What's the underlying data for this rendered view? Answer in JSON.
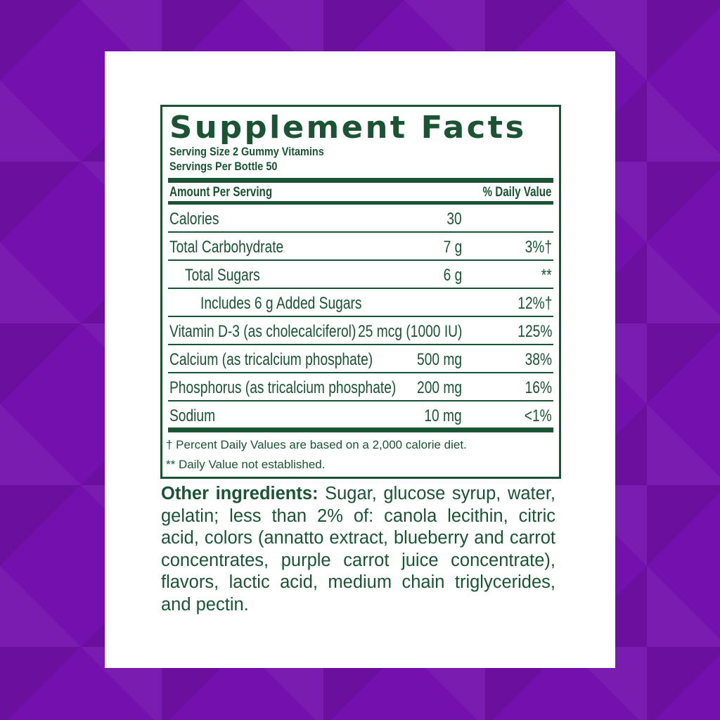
{
  "label": {
    "title": "Supplement Facts",
    "serving_size": "Serving Size 2 Gummy Vitamins",
    "servings_per": "Servings Per Bottle 50",
    "header_amount": "Amount Per Serving",
    "header_dv": "% Daily Value",
    "rows": [
      {
        "name": "Calories",
        "amount": "30",
        "dv": "",
        "indent": 0
      },
      {
        "name": "Total Carbohydrate",
        "amount": "7 g",
        "dv": "3%†",
        "indent": 0
      },
      {
        "name": "Total Sugars",
        "amount": "6 g",
        "dv": "**",
        "indent": 1
      },
      {
        "name": "Includes 6 g Added Sugars",
        "amount": "",
        "dv": "12%†",
        "indent": 2
      },
      {
        "name": "Vitamin D-3 (as cholecalciferol)",
        "amount": "25 mcg (1000 IU)",
        "dv": "125%",
        "indent": 0
      },
      {
        "name": "Calcium (as tricalcium phosphate)",
        "amount": "500 mg",
        "dv": "38%",
        "indent": 0
      },
      {
        "name": "Phosphorus (as tricalcium phosphate)",
        "amount": "200 mg",
        "dv": "16%",
        "indent": 0
      },
      {
        "name": "Sodium",
        "amount": "10 mg",
        "dv": "<1%",
        "indent": 0
      }
    ],
    "footnote1": "† Percent Daily Values are based on a 2,000 calorie diet.",
    "footnote2": "** Daily Value not established."
  },
  "ingredients": {
    "label": "Other ingredients:",
    "text": " Sugar, glucose syrup, water, gelatin; less than 2% of: canola lecithin, citric acid, colors (annatto extract, blueberry and carrot concentrates, purple carrot juice concentrate), flavors, lactic acid, medium chain triglycerides, and pectin."
  },
  "colors": {
    "label_green": "#1a5434",
    "background_purple": "#7410ad"
  }
}
